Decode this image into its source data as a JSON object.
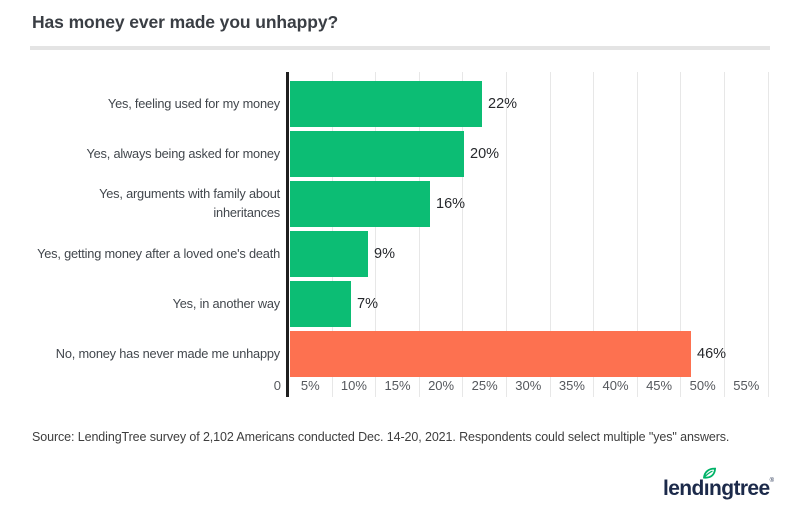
{
  "chart_data": {
    "type": "bar",
    "orientation": "horizontal",
    "title": "Has money ever made you unhappy?",
    "categories": [
      "Yes, feeling used for my money",
      "Yes, always being asked for money",
      "Yes, arguments with family about\ninheritances",
      "Yes, getting money after a loved one's death",
      "Yes, in another way",
      "No, money has never made me unhappy"
    ],
    "values": [
      22,
      20,
      16,
      9,
      7,
      46
    ],
    "data_labels": [
      "22%",
      "20%",
      "16%",
      "9%",
      "7%",
      "46%"
    ],
    "bar_colors": [
      "#0cbd74",
      "#0cbd74",
      "#0cbd74",
      "#0cbd74",
      "#0cbd74",
      "#fd7150"
    ],
    "highlight_index": 5,
    "xlim": [
      0,
      55
    ],
    "x_tick_labels": [
      "0",
      "5%",
      "10%",
      "15%",
      "20%",
      "25%",
      "30%",
      "35%",
      "40%",
      "45%",
      "50%",
      "55%"
    ],
    "grid": true,
    "legend": "none",
    "colors": {
      "bar_green": "#0cbd74",
      "bar_orange": "#fd7150",
      "axis_line": "#1f1f1f",
      "gridline": "#e7e7e7"
    }
  },
  "footer": {
    "source_note": "Source: LendingTree survey of 2,102 Americans conducted Dec. 14-20, 2021. Respondents could select multiple \"yes\" answers.",
    "logo_text": "lendingtree",
    "logo_colors": {
      "navy": "#1c2a4a",
      "leaf_green": "#00b368"
    }
  }
}
